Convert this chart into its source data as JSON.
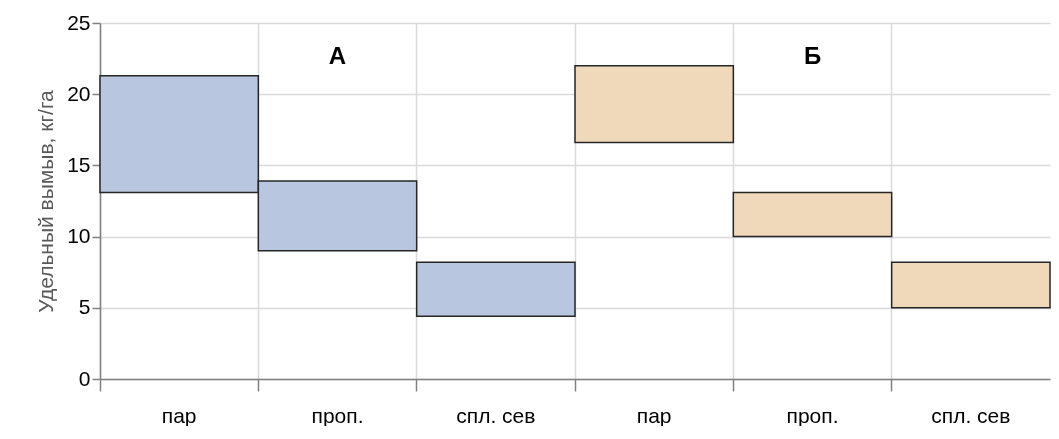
{
  "chart_data": {
    "type": "bar",
    "categories": [
      "пар",
      "проп.",
      "спл. сев",
      "пар",
      "проп.",
      "спл. сев"
    ],
    "base": [
      13.1,
      9.0,
      4.4,
      16.6,
      10.0,
      5.0
    ],
    "values": [
      8.2,
      4.9,
      3.8,
      5.4,
      3.1,
      3.2
    ],
    "colors": [
      "#b9c6df",
      "#b9c6df",
      "#b9c6df",
      "#f0d8bb",
      "#f0d8bb",
      "#f0d8bb"
    ],
    "ylabel": "Удельный вымыв, кг/га",
    "ylim": [
      0,
      25
    ],
    "yticks": [
      0,
      5,
      10,
      15,
      20,
      25
    ],
    "annotations": [
      "А",
      "Б"
    ],
    "grid": true
  }
}
